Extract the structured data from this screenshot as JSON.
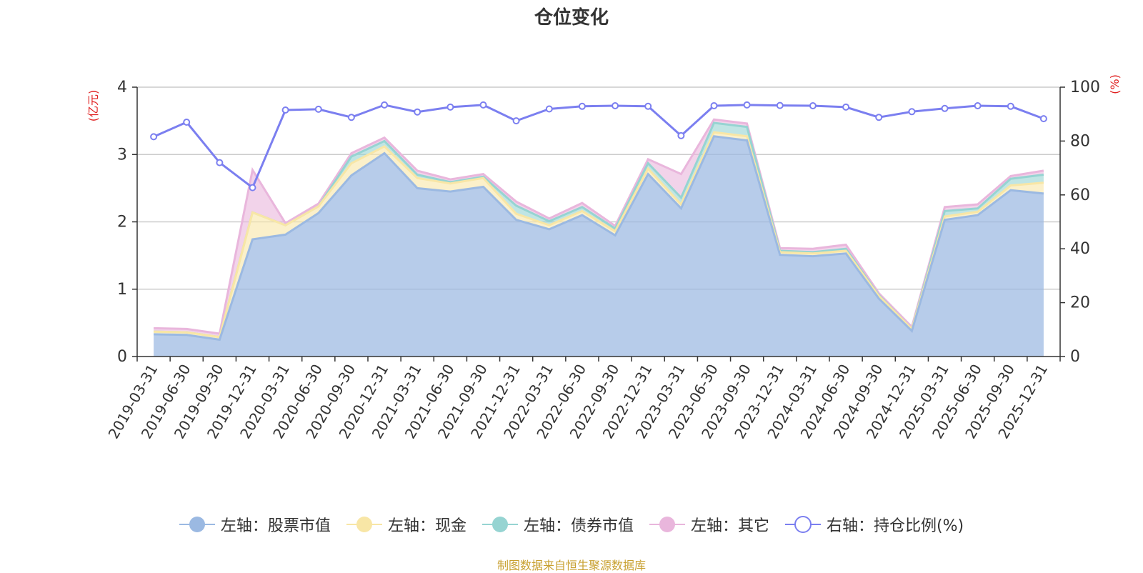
{
  "title": "仓位变化",
  "source": "制图数据来自恒生聚源数据库",
  "colors": {
    "stock": "#9bb9e2",
    "cash": "#f8e6a6",
    "bond": "#96d4d2",
    "other": "#e9b6dc",
    "ratio": "#7b7ff0",
    "axis_unit": "#e02020"
  },
  "legend": [
    {
      "key": "stock",
      "label": "左轴：股票市值"
    },
    {
      "key": "cash",
      "label": "左轴：现金"
    },
    {
      "key": "bond",
      "label": "左轴：债券市值"
    },
    {
      "key": "other",
      "label": "左轴：其它"
    },
    {
      "key": "ratio",
      "label": "右轴：持仓比例(%)"
    }
  ],
  "chart_data": {
    "type": "area",
    "categories": [
      "2019-03-31",
      "2019-06-30",
      "2019-09-30",
      "2019-12-31",
      "2020-03-31",
      "2020-06-30",
      "2020-09-30",
      "2020-12-31",
      "2021-03-31",
      "2021-06-30",
      "2021-09-30",
      "2021-12-31",
      "2022-03-31",
      "2022-06-30",
      "2022-09-30",
      "2022-12-31",
      "2023-03-31",
      "2023-06-30",
      "2023-09-30",
      "2023-12-31",
      "2024-03-31",
      "2024-06-30",
      "2024-09-30",
      "2024-12-31",
      "2025-03-31",
      "2025-06-30",
      "2025-09-30",
      "2025-12-31"
    ],
    "left_axis": {
      "unit": "(亿元)",
      "min": 0,
      "max": 4,
      "ticks": [
        0,
        1,
        2,
        3,
        4
      ]
    },
    "right_axis": {
      "unit": "(%)",
      "min": 0,
      "max": 100,
      "ticks": [
        0,
        20,
        40,
        60,
        80,
        100
      ]
    },
    "stacked": true,
    "series": [
      {
        "key": "stock",
        "name": "左轴：股票市值",
        "axis": "left",
        "values": [
          0.33,
          0.32,
          0.25,
          1.74,
          1.81,
          2.13,
          2.69,
          3.02,
          2.5,
          2.45,
          2.52,
          2.03,
          1.89,
          2.1,
          1.8,
          2.71,
          2.2,
          3.27,
          3.21,
          1.51,
          1.49,
          1.53,
          0.86,
          0.38,
          2.03,
          2.1,
          2.47,
          2.42
        ]
      },
      {
        "key": "cash",
        "name": "左轴：现金",
        "axis": "left",
        "values": [
          0.04,
          0.04,
          0.04,
          0.4,
          0.14,
          0.1,
          0.18,
          0.1,
          0.15,
          0.12,
          0.13,
          0.09,
          0.06,
          0.06,
          0.06,
          0.08,
          0.06,
          0.06,
          0.06,
          0.04,
          0.04,
          0.04,
          0.04,
          0.03,
          0.05,
          0.05,
          0.07,
          0.16
        ]
      },
      {
        "key": "bond",
        "name": "左轴：债券市值",
        "axis": "left",
        "values": [
          0,
          0,
          0,
          0,
          0,
          0,
          0.1,
          0.08,
          0.05,
          0.02,
          0.02,
          0.12,
          0.06,
          0.06,
          0.04,
          0.08,
          0.1,
          0.14,
          0.14,
          0.02,
          0.02,
          0.03,
          0.01,
          0,
          0.08,
          0.05,
          0.1,
          0.12
        ]
      },
      {
        "key": "other",
        "name": "左轴：其它",
        "axis": "left",
        "values": [
          0.05,
          0.05,
          0.05,
          0.63,
          0.03,
          0.04,
          0.05,
          0.05,
          0.06,
          0.04,
          0.04,
          0.06,
          0.04,
          0.06,
          0.04,
          0.06,
          0.35,
          0.05,
          0.05,
          0.04,
          0.05,
          0.06,
          0.03,
          0.03,
          0.06,
          0.06,
          0.04,
          0.06
        ]
      },
      {
        "key": "ratio",
        "name": "右轴：持仓比例(%)",
        "axis": "right",
        "type": "line",
        "values": [
          81.6,
          87.0,
          72.0,
          62.7,
          91.5,
          91.8,
          88.8,
          93.4,
          90.8,
          92.6,
          93.4,
          87.5,
          91.9,
          92.9,
          93.1,
          92.9,
          82.0,
          93.1,
          93.4,
          93.2,
          93.1,
          92.6,
          88.8,
          90.9,
          92.1,
          93.1,
          92.9,
          88.3
        ]
      }
    ]
  }
}
